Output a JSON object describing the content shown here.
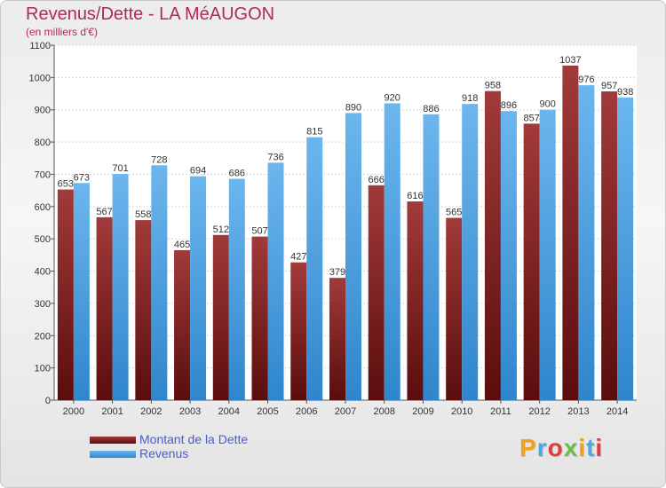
{
  "chart_data": {
    "type": "bar",
    "title": "Revenus/Dette - LA MéAUGON",
    "subtitle": "(en milliers d'€)",
    "categories": [
      "2000",
      "2001",
      "2002",
      "2003",
      "2004",
      "2005",
      "2006",
      "2007",
      "2008",
      "2009",
      "2010",
      "2011",
      "2012",
      "2013",
      "2014"
    ],
    "series": [
      {
        "name": "Montant de la Dette",
        "values": [
          653,
          567,
          558,
          465,
          512,
          507,
          427,
          379,
          666,
          616,
          565,
          958,
          857,
          1037,
          957
        ]
      },
      {
        "name": "Revenus",
        "values": [
          673,
          701,
          728,
          694,
          686,
          736,
          815,
          890,
          920,
          886,
          918,
          896,
          900,
          976,
          938
        ]
      }
    ],
    "ylim": [
      0,
      1100
    ],
    "yticks": [
      0,
      100,
      200,
      300,
      400,
      500,
      600,
      700,
      800,
      900,
      1000,
      1100
    ],
    "grid": true,
    "legend": "bottom-left",
    "colors": {
      "dette_top": "#a23a3a",
      "dette_bottom": "#5a0d0d",
      "revenus_top": "#6cb6ee",
      "revenus_bottom": "#2f86cc"
    }
  },
  "brand": {
    "letters": [
      "P",
      "r",
      "o",
      "x",
      "i",
      "t",
      "i"
    ],
    "colors": [
      "#f2a01c",
      "#4aa8e0",
      "#e23b3b",
      "#6cbd45",
      "#f2a01c",
      "#4aa8e0",
      "#e23b3b"
    ]
  }
}
